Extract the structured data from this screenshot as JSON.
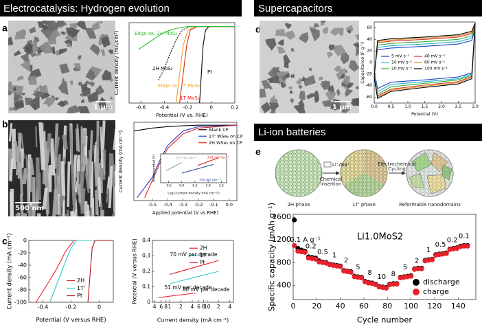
{
  "headers": [
    "Electrocatalysis: Hydrogen evolution",
    "Supercapacitors",
    "Li-ion batteries"
  ],
  "panel_labels": [
    "a",
    "b",
    "c",
    "d",
    "e"
  ],
  "scale_bars": [
    "1 μm",
    "500 nm",
    "1 μm"
  ],
  "schematic": {
    "phases": [
      "2H phase",
      "1T' phase",
      "Reformable nanodomains"
    ],
    "insertion": [
      "Li⁺/Na⁺",
      "Chemical",
      "insertion"
    ],
    "cycling": [
      "Electrochemical",
      "Cycling"
    ]
  },
  "chart_data": [
    {
      "type": "line",
      "xlabel": "Potential (V vs. RHE)",
      "ylabel": "Current density (mA/cm²)",
      "xlim": [
        -0.7,
        0.2
      ],
      "ylim": [
        -40,
        2
      ],
      "xticks": [
        -0.6,
        -0.4,
        -0.2,
        0,
        0.2
      ],
      "legend": "inline",
      "series": [
        {
          "name": "Pt",
          "color": "#000000",
          "x": [
            -0.1,
            -0.09,
            -0.08,
            -0.07,
            -0.05,
            -0.02,
            0.2
          ],
          "values": [
            -40,
            -30,
            -20,
            -10,
            -2,
            0,
            0
          ]
        },
        {
          "name": "1T MoS₂",
          "color": "#e0201b",
          "x": [
            -0.27,
            -0.25,
            -0.23,
            -0.21,
            -0.18,
            -0.12,
            0.2
          ],
          "values": [
            -40,
            -30,
            -20,
            -10,
            -2,
            0,
            0
          ]
        },
        {
          "name": "Edge ox. 1T MoS₂",
          "color": "#f0a020",
          "x": [
            -0.3,
            -0.28,
            -0.26,
            -0.24,
            -0.2,
            -0.14,
            0.2
          ],
          "values": [
            -40,
            -30,
            -20,
            -10,
            -2,
            0,
            0
          ]
        },
        {
          "name": "2H MoS₂",
          "color": "#000000",
          "dashed": true,
          "x": [
            -0.45,
            -0.4,
            -0.35,
            -0.3,
            -0.25,
            -0.18,
            0.2
          ],
          "values": [
            -28,
            -22,
            -14,
            -7,
            -2,
            0,
            0
          ]
        },
        {
          "name": "Edge ox. 2H MoS₂",
          "color": "#2fbf2f",
          "x": [
            -0.62,
            -0.5,
            -0.4,
            -0.3,
            -0.2,
            0.2
          ],
          "values": [
            -12,
            -7,
            -3,
            -1,
            0,
            0
          ]
        }
      ]
    },
    {
      "type": "line",
      "xlabel": "Applied potential (V vs RHE)",
      "ylabel": "Current density (mA cm⁻²)",
      "xlim": [
        -0.62,
        0.05
      ],
      "ylim": [
        -26,
        1
      ],
      "xticks": [
        -0.5,
        -0.4,
        -0.3,
        -0.2,
        -0.1,
        {
          "value": 0,
          "label": "0.0"
        }
      ],
      "legend": "upper right",
      "series": [
        {
          "name": "Blank CP",
          "color": "#000000",
          "x": [
            -0.62,
            -0.5,
            -0.4,
            -0.3,
            -0.2,
            0.05
          ],
          "values": [
            -2,
            -1,
            -0.5,
            -0.2,
            0,
            0
          ]
        },
        {
          "name": "1T' WSe₂ on CP",
          "color": "#1f3fbf",
          "x": [
            -0.6,
            -0.5,
            -0.45,
            -0.4,
            -0.3,
            -0.2,
            0.05
          ],
          "values": [
            -25,
            -18,
            -12,
            -7,
            -2,
            -0.5,
            0
          ]
        },
        {
          "name": "2H WSe₂ on CP",
          "color": "#e0201b",
          "x": [
            -0.55,
            -0.5,
            -0.45,
            -0.4,
            -0.3,
            -0.2,
            0.05
          ],
          "values": [
            -25,
            -19,
            -13,
            -8,
            -3,
            -1,
            0
          ]
        }
      ]
    },
    {
      "type": "line",
      "xlabel": "Log (current density (mA cm⁻²))",
      "ylabel": "Overpotential (V)",
      "xlim": [
        -0.8,
        1.7
      ],
      "ylim": [
        0,
        0.6
      ],
      "xticks": [
        -0.5,
        {
          "value": 0,
          "label": "0.0"
        },
        0.5,
        {
          "value": 1,
          "label": "1.0"
        },
        1.5
      ],
      "legend": "inline",
      "series": [
        {
          "name": "275 mV dec⁻¹",
          "color": "#999999",
          "x": [
            -0.6,
            0.0
          ],
          "values": [
            0.25,
            0.42
          ]
        },
        {
          "name": "232 mV dec⁻¹",
          "color": "#e0201b",
          "x": [
            0.6,
            1.4
          ],
          "values": [
            0.36,
            0.52
          ]
        },
        {
          "name": "150 mV dec⁻¹",
          "color": "#1f3f8f",
          "x": [
            0.0,
            1.2
          ],
          "values": [
            0.2,
            0.38
          ]
        }
      ]
    },
    {
      "type": "line",
      "xlabel": "Potential (V versus RHE)",
      "ylabel": "Current density (mA cm⁻²)",
      "xlim": [
        -0.5,
        0.1
      ],
      "ylim": [
        -100,
        0
      ],
      "xticks": [
        -0.4,
        -0.2,
        0
      ],
      "yticks": [
        0,
        -20,
        -40,
        -60,
        -80,
        -100
      ],
      "legend": "lower right",
      "series": [
        {
          "name": "2H",
          "color": "#e8202a",
          "x": [
            -0.45,
            -0.38,
            -0.3,
            -0.24,
            -0.18,
            0.1
          ],
          "values": [
            -100,
            -75,
            -45,
            -18,
            0,
            0
          ]
        },
        {
          "name": "1T'",
          "color": "#30c8c8",
          "x": [
            -0.35,
            -0.3,
            -0.25,
            -0.2,
            -0.16,
            0.1
          ],
          "values": [
            -100,
            -70,
            -40,
            -12,
            0,
            0
          ]
        },
        {
          "name": "Pt",
          "color": "#b0101a",
          "x": [
            -0.08,
            -0.07,
            -0.06,
            -0.05,
            -0.03,
            0.1
          ],
          "values": [
            -100,
            -70,
            -40,
            -12,
            0,
            0
          ]
        }
      ]
    },
    {
      "type": "line",
      "xlabel": "Current density (mA cm⁻²)",
      "ylabel": "Potential (V versus RHE)",
      "xscale": "log",
      "xlim": [
        0.35,
        50
      ],
      "ylim": [
        0,
        0.4
      ],
      "xticks": [
        {
          "value": 0.4,
          "label": "4"
        },
        {
          "value": 0.6,
          "label": "6"
        },
        {
          "value": 0.8,
          "label": "8"
        },
        1,
        {
          "value": 2,
          "label": "2"
        },
        {
          "value": 4,
          "label": "4"
        },
        {
          "value": 6,
          "label": "6"
        },
        {
          "value": 8,
          "label": "8"
        },
        10,
        {
          "value": 20,
          "label": "2"
        },
        {
          "value": 40,
          "label": "4"
        }
      ],
      "yticks": [
        0,
        0.1,
        0.2,
        0.3,
        0.4
      ],
      "legend": "upper right",
      "annotations": [
        "70 mV per decade",
        "51 mV per decade",
        "30 mV per decade"
      ],
      "series": [
        {
          "name": "2H",
          "color": "#e8202a",
          "x": [
            1,
            20
          ],
          "values": [
            0.18,
            0.27
          ]
        },
        {
          "name": "1T'",
          "color": "#30c8c8",
          "x": [
            1,
            20
          ],
          "values": [
            0.12,
            0.2
          ]
        },
        {
          "name": "Pt",
          "color": "#e8202a",
          "x": [
            0.5,
            5
          ],
          "values": [
            0.03,
            0.06
          ]
        }
      ]
    },
    {
      "type": "line",
      "xlabel": "Potential (V)",
      "ylabel": "Capacitance (F g⁻¹)",
      "xlim": [
        0,
        3
      ],
      "ylim": [
        -70,
        70
      ],
      "xticks": [
        {
          "value": 0,
          "label": "0.0"
        },
        0.5,
        {
          "value": 1,
          "label": "1.0"
        },
        1.5,
        {
          "value": 2,
          "label": "2.0"
        },
        2.5,
        {
          "value": 3,
          "label": "3.0"
        }
      ],
      "yticks": [
        -60,
        -40,
        -20,
        0,
        20,
        40,
        60
      ],
      "legend": "center left",
      "legend_columns": 2,
      "series": [
        {
          "name": "5 mV s⁻¹",
          "color": "#2040c0",
          "x": [
            0,
            0.1,
            0.5,
            1.5,
            2.5,
            2.9,
            3,
            2.9,
            2.5,
            1.5,
            0.5,
            0.1,
            0
          ],
          "values": [
            -15,
            22,
            25,
            28,
            32,
            38,
            58,
            -18,
            -25,
            -30,
            -34,
            -45,
            -15
          ]
        },
        {
          "name": "10 mV s⁻¹",
          "color": "#20b0d0",
          "x": [
            0,
            0.1,
            0.5,
            1.5,
            2.5,
            2.9,
            3,
            2.9,
            2.5,
            1.5,
            0.5,
            0.1,
            0
          ],
          "values": [
            -18,
            26,
            29,
            32,
            36,
            42,
            62,
            -20,
            -28,
            -33,
            -38,
            -50,
            -18
          ]
        },
        {
          "name": "20 mV s⁻¹",
          "color": "#30b030",
          "x": [
            0,
            0.1,
            0.5,
            1.5,
            2.5,
            2.9,
            3,
            2.9,
            2.5,
            1.5,
            0.5,
            0.1,
            0
          ],
          "values": [
            -20,
            30,
            33,
            36,
            40,
            46,
            65,
            -22,
            -30,
            -36,
            -42,
            -55,
            -20
          ]
        },
        {
          "name": "40 mV s⁻¹",
          "color": "#d03030",
          "x": [
            0,
            0.1,
            0.5,
            1.5,
            2.5,
            2.9,
            3,
            2.9,
            2.5,
            1.5,
            0.5,
            0.1,
            0
          ],
          "values": [
            -22,
            34,
            37,
            40,
            44,
            50,
            66,
            -24,
            -33,
            -39,
            -46,
            -58,
            -22
          ]
        },
        {
          "name": "60 mV s⁻¹",
          "color": "#e09020",
          "x": [
            0,
            0.1,
            0.5,
            1.5,
            2.5,
            2.9,
            3,
            2.9,
            2.5,
            1.5,
            0.5,
            0.1,
            0
          ],
          "values": [
            -24,
            36,
            39,
            42,
            46,
            52,
            67,
            -26,
            -35,
            -41,
            -48,
            -60,
            -24
          ]
        },
        {
          "name": "100 mV s⁻¹",
          "color": "#000000",
          "x": [
            0,
            0.1,
            0.5,
            1.5,
            2.5,
            2.9,
            3,
            2.9,
            2.5,
            1.5,
            0.5,
            0.1,
            0
          ],
          "values": [
            -26,
            38,
            41,
            44,
            48,
            54,
            68,
            -28,
            -37,
            -43,
            -50,
            -62,
            -26
          ]
        }
      ]
    },
    {
      "type": "scatter",
      "xlabel": "Cycle number",
      "ylabel": "Specific capacity (mAh g⁻¹)",
      "xlim": [
        0,
        155
      ],
      "ylim": [
        150,
        1650
      ],
      "xticks": [
        0,
        20,
        40,
        60,
        80,
        100,
        120,
        140
      ],
      "yticks": [
        400,
        800,
        1200,
        1600
      ],
      "legend": "lower right",
      "text": "Li1.0MoS2",
      "annotations": [
        "0.1 A g⁻¹",
        "0.2",
        "0.5",
        "1",
        "2",
        "5",
        "8",
        "10",
        "8",
        "5",
        "2",
        "1",
        "0.5",
        "0.2",
        "0.1"
      ],
      "series": [
        {
          "name": "discharge",
          "color": "#000000",
          "x": [
            1,
            4,
            7,
            10,
            13,
            16,
            19,
            22,
            25,
            28,
            31,
            34,
            37,
            40,
            43,
            46,
            49,
            52,
            55,
            58,
            61,
            64,
            67,
            70,
            73,
            76,
            79,
            82,
            85,
            88,
            91,
            94,
            97,
            100,
            103,
            106,
            109,
            112,
            115,
            118,
            121,
            124,
            127,
            130,
            133,
            136,
            139,
            142,
            145,
            148
          ],
          "values": [
            1550,
            1050,
            1020,
            1000,
            900,
            890,
            880,
            830,
            810,
            800,
            770,
            760,
            750,
            740,
            660,
            650,
            640,
            560,
            550,
            540,
            470,
            450,
            440,
            420,
            380,
            370,
            360,
            420,
            430,
            430,
            540,
            550,
            560,
            570,
            690,
            700,
            700,
            840,
            850,
            860,
            940,
            950,
            960,
            970,
            1040,
            1050,
            1060,
            1090,
            1100,
            1100
          ]
        },
        {
          "name": "charge",
          "color": "#e8202a",
          "x": [
            1,
            4,
            7,
            10,
            13,
            16,
            19,
            22,
            25,
            28,
            31,
            34,
            37,
            40,
            43,
            46,
            49,
            52,
            55,
            58,
            61,
            64,
            67,
            70,
            73,
            76,
            79,
            82,
            85,
            88,
            91,
            94,
            97,
            100,
            103,
            106,
            109,
            112,
            115,
            118,
            121,
            124,
            127,
            130,
            133,
            136,
            139,
            142,
            145,
            148
          ],
          "values": [
            1100,
            1000,
            990,
            980,
            880,
            870,
            860,
            810,
            800,
            790,
            760,
            750,
            740,
            730,
            650,
            640,
            630,
            550,
            540,
            530,
            460,
            440,
            430,
            410,
            370,
            360,
            350,
            410,
            420,
            420,
            530,
            540,
            550,
            560,
            680,
            690,
            690,
            830,
            840,
            850,
            930,
            940,
            950,
            960,
            1030,
            1040,
            1050,
            1080,
            1090,
            1090
          ]
        }
      ]
    }
  ]
}
